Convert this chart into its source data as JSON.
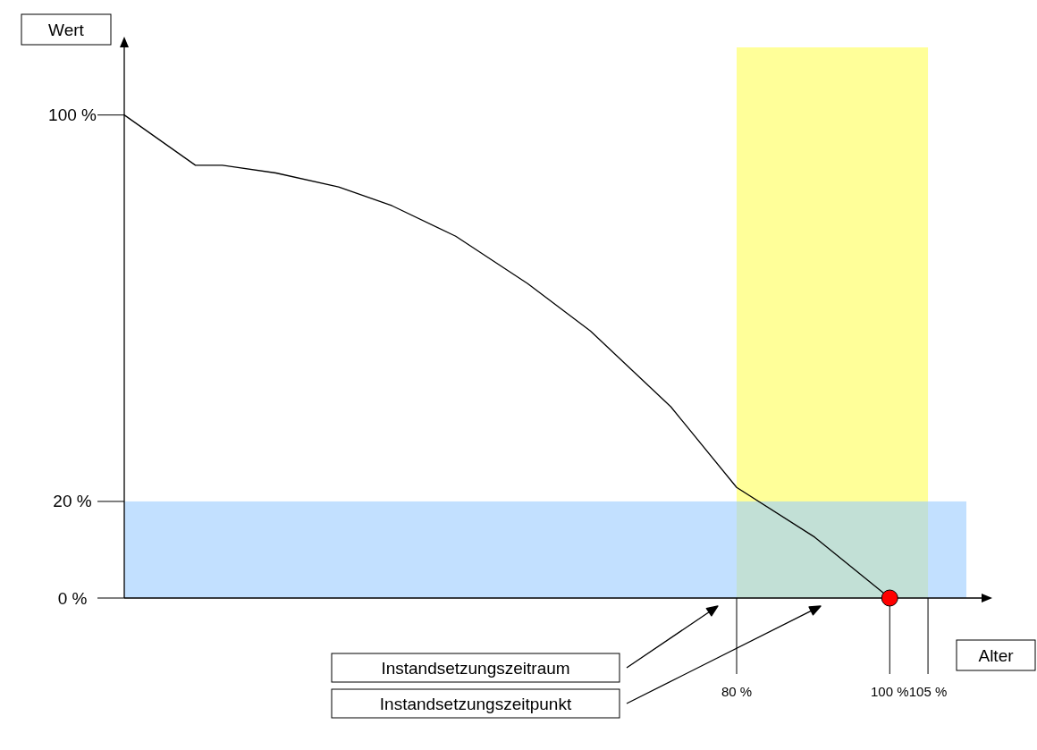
{
  "chart_data": {
    "type": "line",
    "xlabel": "Alter",
    "ylabel": "Wert",
    "xlim": [
      0,
      112
    ],
    "ylim": [
      0,
      114
    ],
    "xticks": [
      {
        "value": 80,
        "label": "80 %"
      },
      {
        "value": 100,
        "label": "100 %"
      },
      {
        "value": 105,
        "label": "105 %"
      }
    ],
    "yticks": [
      {
        "value": 0,
        "label": "0 %"
      },
      {
        "value": 20,
        "label": "20 %"
      },
      {
        "value": 100,
        "label": "100 %"
      }
    ],
    "series": [
      {
        "type": "line",
        "color": "#000000",
        "marker": "none",
        "x": [
          0,
          9.3,
          12.8,
          19.8,
          28,
          35,
          43.3,
          52.7,
          60.9,
          71.4,
          80,
          90.2,
          100
        ],
        "values": [
          100,
          89.6,
          89.6,
          88,
          85.1,
          81.2,
          74.9,
          65.1,
          55.3,
          39.6,
          22.9,
          12.6,
          0
        ]
      },
      {
        "type": "scatter",
        "color": "#ff0000",
        "marker": "circle",
        "x": [
          100
        ],
        "values": [
          0
        ]
      }
    ],
    "bands": [
      {
        "axis": "y",
        "from": 0,
        "to": 20,
        "color": "#99ccff"
      },
      {
        "axis": "x",
        "from": 80,
        "to": 105,
        "color": "#ffff99"
      }
    ],
    "annotations": [
      "Instandsetzungszeitraum",
      "Instandsetzungszeitpunkt"
    ],
    "grid": false
  }
}
